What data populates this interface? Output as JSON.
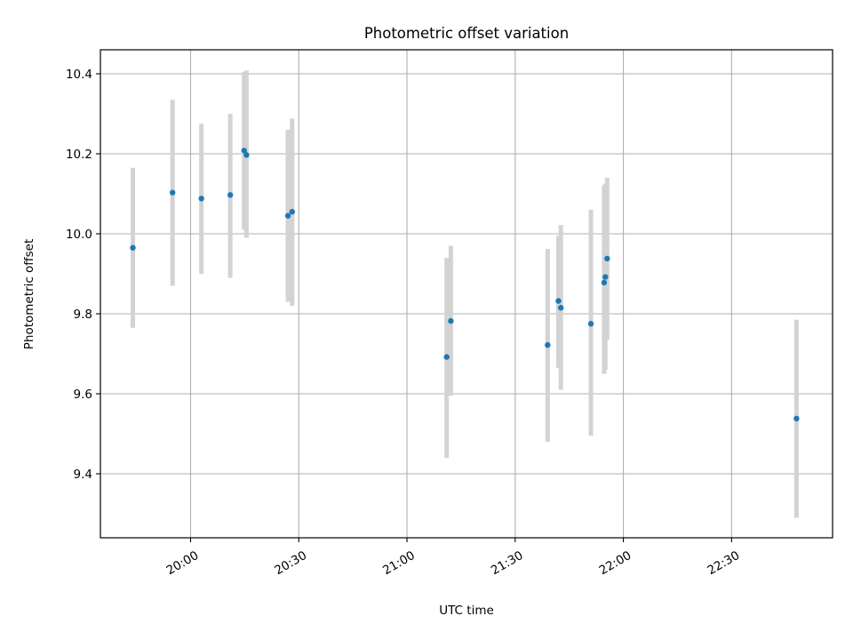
{
  "chart_data": {
    "type": "scatter",
    "title": "Photometric offset variation",
    "xlabel": "UTC time",
    "ylabel": "Photometric offset",
    "xlim": [
      "19:35",
      "22:58"
    ],
    "ylim": [
      9.24,
      10.46
    ],
    "xticks": [
      "20:00",
      "20:30",
      "21:00",
      "21:30",
      "22:00",
      "22:30"
    ],
    "yticks": [
      "9.4",
      "9.6",
      "9.8",
      "10.0",
      "10.2",
      "10.4"
    ],
    "grid": true,
    "point_color": "#1f77b4",
    "errorbar_color": "#d3d3d3",
    "points": [
      {
        "x": "19:44:00",
        "y": 9.965,
        "ylow": 9.765,
        "yhigh": 10.165
      },
      {
        "x": "19:55:00",
        "y": 10.103,
        "ylow": 9.87,
        "yhigh": 10.335
      },
      {
        "x": "20:03:00",
        "y": 10.088,
        "ylow": 9.9,
        "yhigh": 10.275
      },
      {
        "x": "20:11:00",
        "y": 10.097,
        "ylow": 9.89,
        "yhigh": 10.3
      },
      {
        "x": "20:14:50",
        "y": 10.208,
        "ylow": 10.01,
        "yhigh": 10.405
      },
      {
        "x": "20:15:30",
        "y": 10.197,
        "ylow": 9.99,
        "yhigh": 10.408
      },
      {
        "x": "20:27:00",
        "y": 10.045,
        "ylow": 9.83,
        "yhigh": 10.26
      },
      {
        "x": "20:28:10",
        "y": 10.055,
        "ylow": 9.82,
        "yhigh": 10.288
      },
      {
        "x": "21:11:00",
        "y": 9.692,
        "ylow": 9.44,
        "yhigh": 9.94
      },
      {
        "x": "21:12:10",
        "y": 9.782,
        "ylow": 9.595,
        "yhigh": 9.97
      },
      {
        "x": "21:39:00",
        "y": 9.722,
        "ylow": 9.48,
        "yhigh": 9.962
      },
      {
        "x": "21:42:00",
        "y": 9.832,
        "ylow": 9.665,
        "yhigh": 9.995
      },
      {
        "x": "21:42:40",
        "y": 9.815,
        "ylow": 9.61,
        "yhigh": 10.022
      },
      {
        "x": "21:51:00",
        "y": 9.775,
        "ylow": 9.495,
        "yhigh": 10.06
      },
      {
        "x": "21:54:40",
        "y": 9.878,
        "ylow": 9.65,
        "yhigh": 10.12
      },
      {
        "x": "21:55:00",
        "y": 9.892,
        "ylow": 9.66,
        "yhigh": 10.125
      },
      {
        "x": "21:55:30",
        "y": 9.938,
        "ylow": 9.735,
        "yhigh": 10.14
      },
      {
        "x": "22:48:00",
        "y": 9.538,
        "ylow": 9.29,
        "yhigh": 9.785
      }
    ]
  }
}
